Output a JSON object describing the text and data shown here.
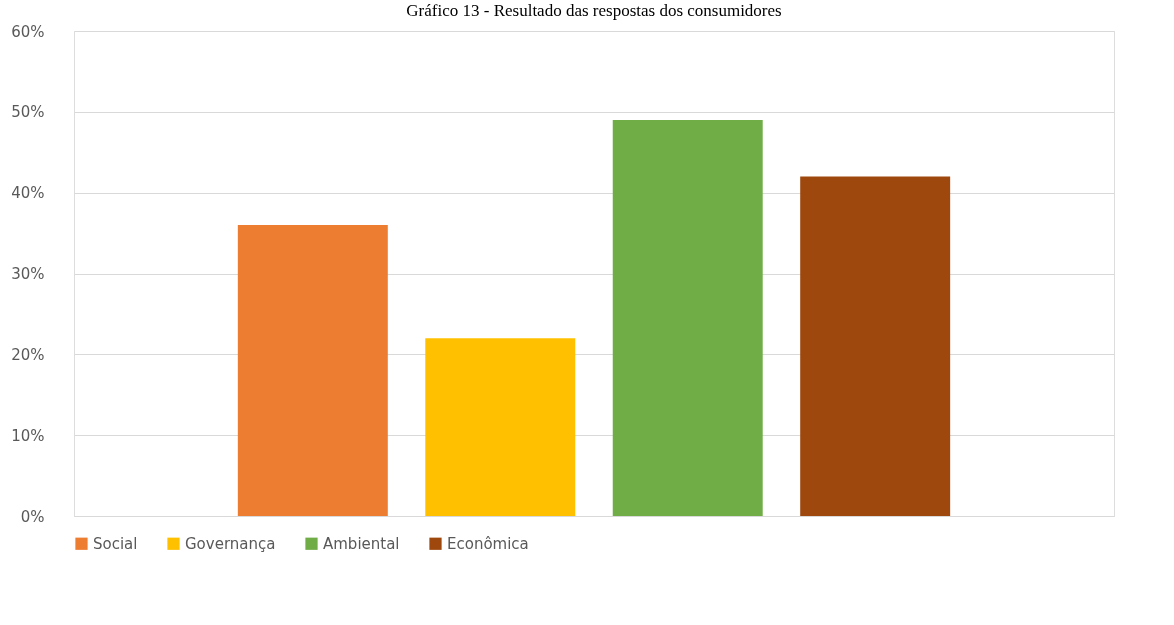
{
  "chart_data": {
    "type": "bar",
    "title": "Gráfico 13 - Resultado das respostas dos consumidores",
    "categories": [
      null
    ],
    "series": [
      {
        "name": "Social",
        "color": "#ed7d31",
        "values": [
          36
        ]
      },
      {
        "name": "Governança",
        "color": "#ffc000",
        "values": [
          22
        ]
      },
      {
        "name": "Ambiental",
        "color": "#70ad47",
        "values": [
          49
        ]
      },
      {
        "name": "Econômica",
        "color": "#9e480e",
        "values": [
          42
        ]
      }
    ],
    "ylim": [
      0,
      60
    ],
    "yticks": [
      {
        "value": 0,
        "label": "0%"
      },
      {
        "value": 10,
        "label": "10%"
      },
      {
        "value": 20,
        "label": "20%"
      },
      {
        "value": 30,
        "label": "30%"
      },
      {
        "value": 40,
        "label": "40%"
      },
      {
        "value": 50,
        "label": "50%"
      },
      {
        "value": 60,
        "label": "60%"
      }
    ],
    "grid": "y",
    "legend": "bottom"
  }
}
